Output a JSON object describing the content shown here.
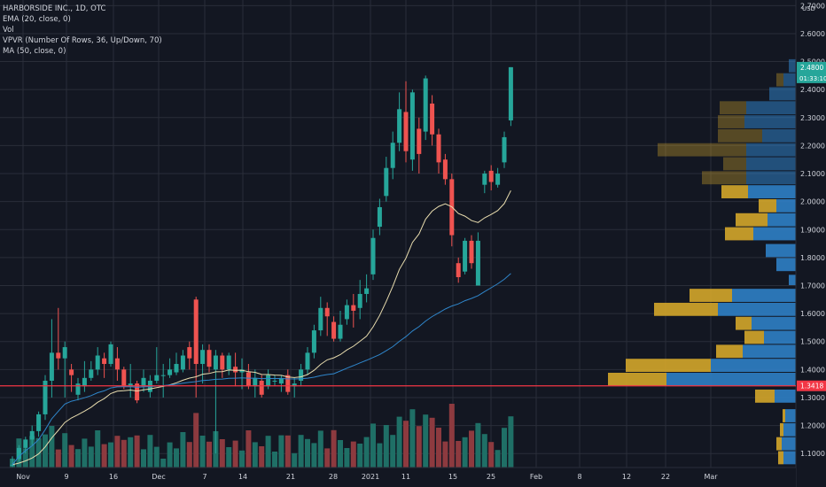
{
  "legend": {
    "title": "HARBORSIDE INC., 1D, OTC",
    "indicators": [
      "EMA (20, close, 0)",
      "Vol",
      "VPVR (Number Of Rows, 36, Up/Down, 70)",
      "MA (50, close, 0)"
    ]
  },
  "currency": "USD",
  "colors": {
    "background": "#131722",
    "grid": "#2a2e39",
    "up": "#26a69a",
    "down": "#ef5350",
    "volume_up": "#1f6f66",
    "volume_down": "#8d3a3f",
    "ema": "#e8dcae",
    "ma": "#2f86cb",
    "vp_up": "#2f80c5",
    "vp_down": "#d4a62a",
    "last_price": "#26a69a",
    "price_line": "#f23645"
  },
  "chart_data": [
    {
      "type": "candlestick",
      "x_ticks": [
        "Nov",
        "9",
        "16",
        "Dec",
        "7",
        "14",
        "21",
        "28",
        "2021",
        "11",
        "15",
        "25",
        "Feb",
        "8",
        "12",
        "22",
        "Mar"
      ],
      "y_ticks": [
        "1.1000",
        "1.2000",
        "1.3000",
        "1.4000",
        "1.5000",
        "1.6000",
        "1.7000",
        "1.8000",
        "1.9000",
        "2.0000",
        "2.1000",
        "2.2000",
        "2.3000",
        "2.4000",
        "2.5000",
        "2.6000",
        "2.7000"
      ],
      "ylim": [
        1.05,
        2.72
      ],
      "last_price": "2.4800",
      "countdown": "01:33:10",
      "price_line": "1.3418",
      "candles": [
        [
          1.06,
          1.06,
          1.09,
          1.05
        ],
        [
          1.08,
          1.12,
          1.13,
          1.07
        ],
        [
          1.12,
          1.15,
          1.16,
          1.1
        ],
        [
          1.15,
          1.18,
          1.2,
          1.13
        ],
        [
          1.18,
          1.24,
          1.25,
          1.16
        ],
        [
          1.24,
          1.36,
          1.38,
          1.22
        ],
        [
          1.36,
          1.46,
          1.58,
          1.3
        ],
        [
          1.46,
          1.44,
          1.62,
          1.4
        ],
        [
          1.44,
          1.48,
          1.5,
          1.3
        ],
        [
          1.4,
          1.38,
          1.42,
          1.32
        ],
        [
          1.31,
          1.35,
          1.37,
          1.29
        ],
        [
          1.34,
          1.37,
          1.43,
          1.32
        ],
        [
          1.37,
          1.4,
          1.43,
          1.36
        ],
        [
          1.4,
          1.45,
          1.48,
          1.38
        ],
        [
          1.44,
          1.42,
          1.46,
          1.37
        ],
        [
          1.42,
          1.49,
          1.5,
          1.41
        ],
        [
          1.44,
          1.4,
          1.48,
          1.36
        ],
        [
          1.4,
          1.34,
          1.41,
          1.33
        ],
        [
          1.34,
          1.35,
          1.42,
          1.3
        ],
        [
          1.35,
          1.29,
          1.36,
          1.28
        ],
        [
          1.34,
          1.37,
          1.4,
          1.32
        ],
        [
          1.32,
          1.36,
          1.38,
          1.3
        ],
        [
          1.36,
          1.38,
          1.48,
          1.35
        ],
        [
          1.38,
          1.38,
          1.42,
          1.3
        ],
        [
          1.38,
          1.4,
          1.44,
          1.37
        ],
        [
          1.39,
          1.42,
          1.46,
          1.38
        ],
        [
          1.4,
          1.45,
          1.47,
          1.39
        ],
        [
          1.48,
          1.44,
          1.5,
          1.4
        ],
        [
          1.65,
          1.42,
          1.66,
          1.3
        ],
        [
          1.42,
          1.47,
          1.49,
          1.35
        ],
        [
          1.47,
          1.41,
          1.49,
          1.39
        ],
        [
          1.4,
          1.45,
          1.47,
          1.1
        ],
        [
          1.45,
          1.4,
          1.46,
          1.37
        ],
        [
          1.4,
          1.45,
          1.46,
          1.38
        ],
        [
          1.41,
          1.39,
          1.46,
          1.34
        ],
        [
          1.39,
          1.4,
          1.44,
          1.33
        ],
        [
          1.39,
          1.34,
          1.42,
          1.33
        ],
        [
          1.34,
          1.37,
          1.4,
          1.3
        ],
        [
          1.36,
          1.31,
          1.38,
          1.3
        ],
        [
          1.34,
          1.38,
          1.4,
          1.33
        ],
        [
          1.36,
          1.36,
          1.38,
          1.34
        ],
        [
          1.35,
          1.37,
          1.38,
          1.32
        ],
        [
          1.38,
          1.32,
          1.4,
          1.31
        ],
        [
          1.34,
          1.35,
          1.37,
          1.3
        ],
        [
          1.36,
          1.4,
          1.42,
          1.34
        ],
        [
          1.4,
          1.46,
          1.48,
          1.38
        ],
        [
          1.46,
          1.54,
          1.56,
          1.44
        ],
        [
          1.54,
          1.62,
          1.66,
          1.52
        ],
        [
          1.62,
          1.59,
          1.64,
          1.52
        ],
        [
          1.57,
          1.51,
          1.59,
          1.5
        ],
        [
          1.51,
          1.56,
          1.61,
          1.5
        ],
        [
          1.58,
          1.63,
          1.65,
          1.56
        ],
        [
          1.63,
          1.61,
          1.67,
          1.55
        ],
        [
          1.62,
          1.67,
          1.72,
          1.58
        ],
        [
          1.67,
          1.69,
          1.74,
          1.64
        ],
        [
          1.74,
          1.87,
          1.9,
          1.72
        ],
        [
          1.91,
          1.98,
          2.01,
          1.88
        ],
        [
          2.02,
          2.12,
          2.16,
          2.0
        ],
        [
          2.12,
          2.21,
          2.25,
          2.08
        ],
        [
          2.21,
          2.33,
          2.39,
          2.18
        ],
        [
          2.32,
          2.18,
          2.43,
          2.14
        ],
        [
          2.15,
          2.39,
          2.4,
          2.11
        ],
        [
          2.26,
          2.17,
          2.3,
          2.1
        ],
        [
          2.25,
          2.44,
          2.45,
          2.22
        ],
        [
          2.35,
          2.24,
          2.38,
          2.2
        ],
        [
          2.24,
          2.14,
          2.26,
          2.1
        ],
        [
          2.15,
          2.08,
          2.17,
          2.06
        ],
        [
          2.08,
          1.88,
          2.1,
          1.84
        ],
        [
          1.78,
          1.73,
          1.8,
          1.71
        ],
        [
          1.75,
          1.86,
          1.87,
          1.74
        ],
        [
          1.86,
          1.78,
          1.88,
          1.76
        ],
        [
          1.7,
          1.86,
          1.89,
          1.7
        ],
        [
          2.06,
          2.1,
          2.11,
          2.03
        ],
        [
          2.11,
          2.07,
          2.13,
          2.04
        ],
        [
          2.06,
          2.1,
          2.12,
          2.05
        ],
        [
          2.14,
          2.23,
          2.25,
          2.12
        ],
        [
          2.29,
          2.48,
          2.48,
          2.27
        ]
      ]
    }
  ]
}
